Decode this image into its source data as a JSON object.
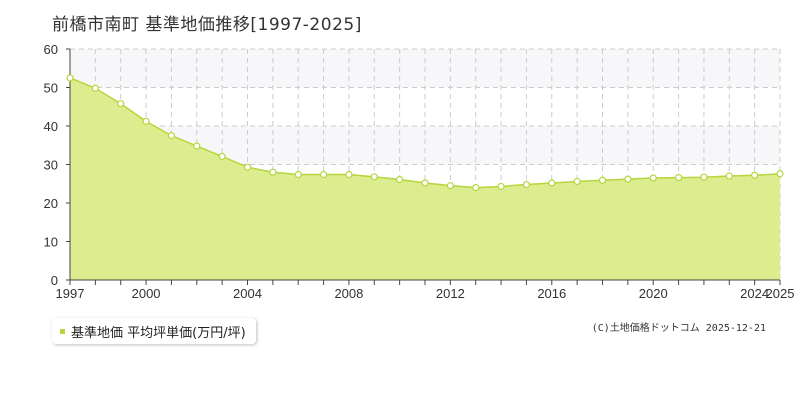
{
  "title": "前橋市南町 基準地価推移[1997-2025]",
  "legend_label": "基準地価 平均坪単価(万円/坪)",
  "copyright": "(C)土地価格ドットコム 2025-12-21",
  "colors": {
    "fill": "#dcec8f",
    "line": "#b5d63c",
    "marker": "#ffffff",
    "grid": "#cccccc",
    "band": "#f7f7f9"
  },
  "chart_data": {
    "type": "area",
    "title": "前橋市南町 基準地価推移[1997-2025]",
    "xlabel": "",
    "ylabel": "",
    "xlim": [
      1997,
      2025
    ],
    "ylim": [
      0,
      60
    ],
    "x_ticks": [
      "1997",
      "2000",
      "2004",
      "2008",
      "2012",
      "2016",
      "2020",
      "2024",
      "2025"
    ],
    "y_ticks": [
      "0",
      "10",
      "20",
      "30",
      "40",
      "50",
      "60"
    ],
    "grid": true,
    "legend_position": "bottom-left",
    "series": [
      {
        "name": "基準地価 平均坪単価(万円/坪)",
        "x": [
          1997,
          1998,
          1999,
          2000,
          2001,
          2002,
          2003,
          2004,
          2005,
          2006,
          2007,
          2008,
          2009,
          2010,
          2011,
          2012,
          2013,
          2014,
          2015,
          2016,
          2017,
          2018,
          2019,
          2020,
          2021,
          2022,
          2023,
          2024,
          2025
        ],
        "values": [
          52.5,
          49.8,
          45.8,
          41.2,
          37.5,
          34.8,
          32.1,
          29.3,
          28.0,
          27.4,
          27.4,
          27.4,
          26.8,
          26.1,
          25.2,
          24.5,
          24.0,
          24.3,
          24.8,
          25.2,
          25.6,
          25.9,
          26.2,
          26.5,
          26.6,
          26.7,
          27.0,
          27.2,
          27.6
        ]
      }
    ]
  }
}
